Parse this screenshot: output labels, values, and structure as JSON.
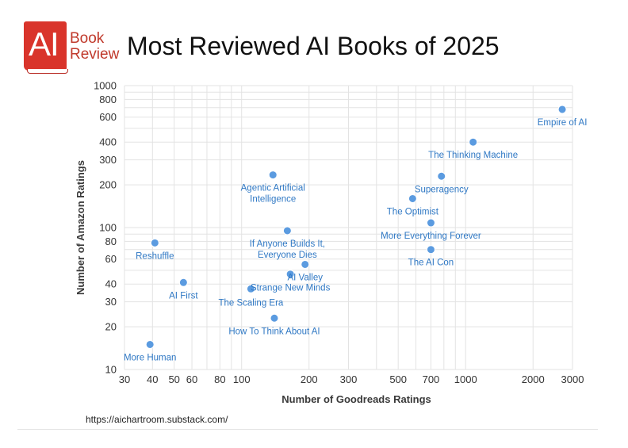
{
  "logo": {
    "mark": "AI",
    "line1": "Book",
    "line2": "Review"
  },
  "title": "Most Reviewed AI Books of 2025",
  "source": "https://aichartroom.substack.com/",
  "colors": {
    "point": "#5b9be0",
    "point_label": "#2f78c4",
    "grid": "#e3e3e3",
    "axis_text": "#333333",
    "axis_title": "#3a3a3a"
  },
  "chart_data": {
    "type": "scatter",
    "xlabel": "Number of Goodreads Ratings",
    "ylabel": "Number of Amazon Ratings",
    "x_scale": "log",
    "y_scale": "log",
    "xlim": [
      30,
      3000
    ],
    "ylim": [
      10,
      1000
    ],
    "x_ticks": [
      30,
      40,
      50,
      60,
      80,
      100,
      200,
      300,
      500,
      700,
      1000,
      2000,
      3000
    ],
    "y_ticks": [
      10,
      20,
      30,
      40,
      60,
      80,
      100,
      200,
      300,
      400,
      600,
      800,
      1000
    ],
    "grid": true,
    "points": [
      {
        "label": "Empire of AI",
        "x": 2700,
        "y": 680
      },
      {
        "label": "The Thinking Machine",
        "x": 1080,
        "y": 400
      },
      {
        "label": "Superagency",
        "x": 780,
        "y": 230
      },
      {
        "label": "The Optimist",
        "x": 580,
        "y": 160
      },
      {
        "label": "More Everything Forever",
        "x": 700,
        "y": 108
      },
      {
        "label": "The AI Con",
        "x": 700,
        "y": 70
      },
      {
        "label": "Agentic Artificial Intelligence",
        "x": 138,
        "y": 235
      },
      {
        "label": "If Anyone Builds It, Everyone Dies",
        "x": 160,
        "y": 95
      },
      {
        "label": "AI Valley",
        "x": 192,
        "y": 55
      },
      {
        "label": "Strange New Minds",
        "x": 165,
        "y": 47
      },
      {
        "label": "The Scaling Era",
        "x": 110,
        "y": 37
      },
      {
        "label": "How To Think About AI",
        "x": 140,
        "y": 23
      },
      {
        "label": "Reshuffle",
        "x": 41,
        "y": 78
      },
      {
        "label": "AI First",
        "x": 55,
        "y": 41
      },
      {
        "label": "More Human",
        "x": 39,
        "y": 15
      }
    ]
  }
}
